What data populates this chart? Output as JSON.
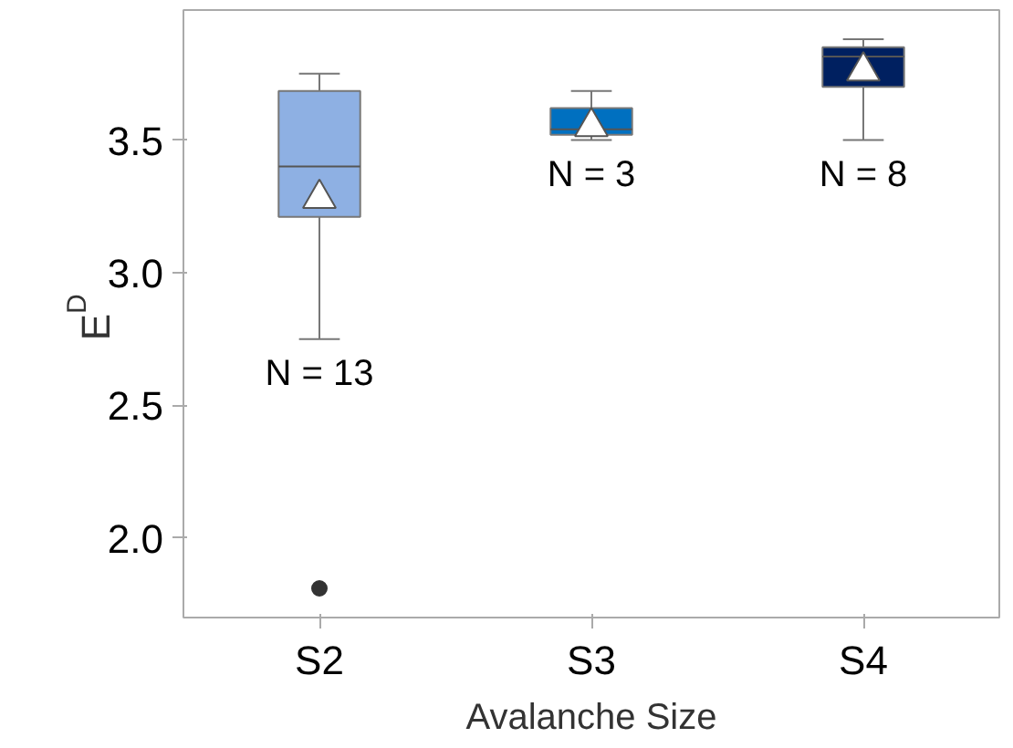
{
  "chart_data": {
    "type": "box",
    "xlabel": "Avalanche Size",
    "ylabel": "E$_{D}$",
    "categories": [
      "S2",
      "S3",
      "S4"
    ],
    "colors": [
      "#8eb0e3",
      "#0070c0",
      "#002060"
    ],
    "boxes": [
      {
        "low": 2.75,
        "q1": 3.21,
        "median": 3.4,
        "q3": 3.685,
        "high": 3.75,
        "mean": 3.28,
        "outliers": [
          1.81
        ]
      },
      {
        "low": 3.5,
        "q1": 3.52,
        "median": 3.54,
        "q3": 3.62,
        "high": 3.685,
        "mean": 3.55
      },
      {
        "low": 3.5,
        "q1": 3.7,
        "median": 3.815,
        "q3": 3.85,
        "high": 3.88,
        "mean": 3.76
      }
    ],
    "ylim": [
      1.7,
      3.99
    ],
    "yticks": [
      {
        "value": 2.0,
        "label": "2.0"
      },
      {
        "value": 2.5,
        "label": "2.5"
      },
      {
        "value": 3.0,
        "label": "3.0"
      },
      {
        "value": 3.5,
        "label": "3.5"
      }
    ],
    "annotations": [
      "N = 13",
      "N = 3",
      "N = 8"
    ],
    "grid": false
  }
}
